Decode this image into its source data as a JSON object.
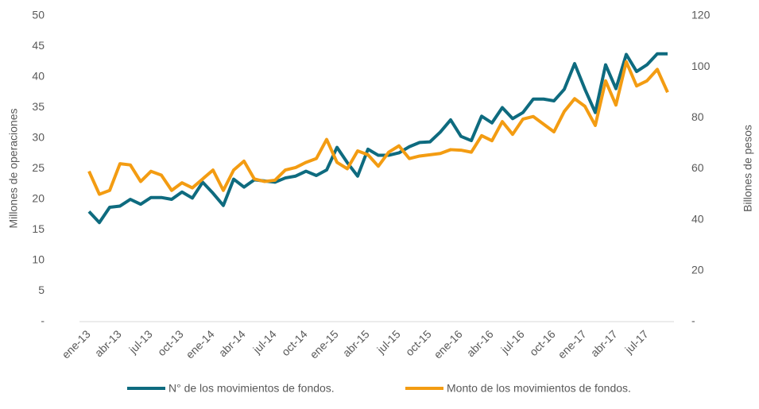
{
  "chart_data": {
    "type": "line",
    "categories": [
      "ene-13",
      null,
      null,
      "abr-13",
      null,
      null,
      "jul-13",
      null,
      null,
      "oct-13",
      null,
      null,
      "ene-14",
      null,
      null,
      "abr-14",
      null,
      null,
      "jul-14",
      null,
      null,
      "oct-14",
      null,
      null,
      "ene-15",
      null,
      null,
      "abr-15",
      null,
      null,
      "jul-15",
      null,
      null,
      "oct-15",
      null,
      null,
      "ene-16",
      null,
      null,
      "abr-16",
      null,
      null,
      "jul-16",
      null,
      null,
      "oct-16",
      null,
      null,
      "ene-17",
      null,
      null,
      "abr-17",
      null,
      null,
      "jul-17",
      null,
      null
    ],
    "series": [
      {
        "name": "N° de los movimientos de fondos.",
        "color": "#0e6b7f",
        "values": [
          18,
          16.2,
          18.7,
          18.9,
          20,
          19.2,
          20.3,
          20.3,
          20,
          21.2,
          20.2,
          22.8,
          21,
          19,
          23.3,
          22,
          23.2,
          23,
          22.8,
          23.5,
          23.8,
          24.6,
          23.9,
          24.8,
          28.5,
          26,
          23.8,
          28.2,
          27.2,
          27.2,
          27.6,
          28.6,
          29.3,
          29.4,
          31,
          33,
          30.3,
          29.6,
          33.6,
          32.5,
          35,
          33.2,
          34.2,
          36.4,
          36.4,
          36.1,
          38,
          42.2,
          38,
          34.2,
          42,
          38.1,
          43.7,
          40.9,
          42,
          43.8,
          43.8
        ]
      },
      {
        "name": "Monto de los movimientos de fondos.",
        "color": "#f39c12",
        "axis": "y2",
        "values": [
          59,
          50,
          51.5,
          62,
          61.5,
          55,
          59,
          57.5,
          51.5,
          54.5,
          52.5,
          56,
          59.5,
          51.5,
          59.5,
          63,
          56,
          55,
          55.5,
          59.5,
          60.5,
          62.5,
          64,
          71.5,
          62.5,
          60,
          67,
          65.5,
          61,
          66.5,
          69,
          64,
          65,
          65.5,
          66,
          67.5,
          67.3,
          66.5,
          73,
          71,
          78.5,
          73.5,
          79.5,
          80.5,
          77.5,
          74.5,
          82.5,
          87.5,
          84.5,
          77,
          94.5,
          85,
          102,
          92.5,
          94.5,
          99,
          90
        ]
      }
    ],
    "ylabel": "Millones de operaciones",
    "y2label": "Billones de pesos",
    "ylim": [
      0,
      50
    ],
    "yticks": [
      {
        "value": 0,
        "label": "-"
      },
      5,
      10,
      15,
      20,
      25,
      30,
      35,
      40,
      45,
      50
    ],
    "y2lim": [
      0,
      120
    ],
    "y2ticks": [
      {
        "value": 0,
        "label": "-"
      },
      20,
      40,
      60,
      80,
      100,
      120
    ],
    "legend": "bottom"
  }
}
